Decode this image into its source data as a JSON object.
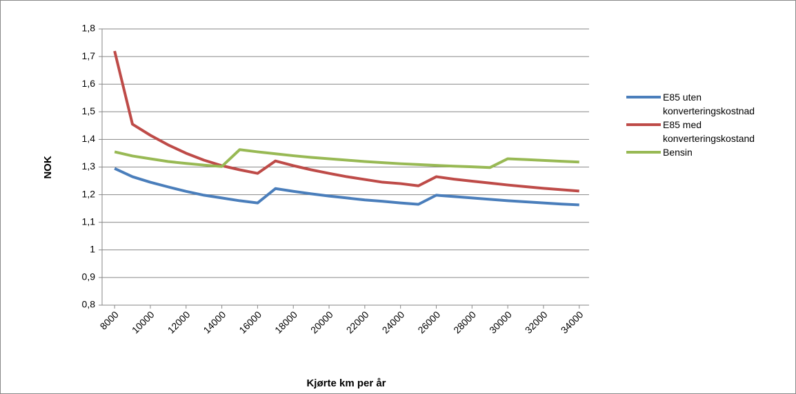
{
  "chart_data": {
    "type": "line",
    "xlabel": "Kjørte km per år",
    "ylabel": "NOK",
    "x": [
      8000,
      9000,
      10000,
      11000,
      12000,
      13000,
      14000,
      15000,
      16000,
      17000,
      18000,
      19000,
      20000,
      21000,
      22000,
      23000,
      24000,
      25000,
      26000,
      27000,
      28000,
      29000,
      30000,
      31000,
      32000,
      33000,
      34000
    ],
    "series": [
      {
        "name": "E85 uten konverteringskostnad",
        "color": "#4a7ebb",
        "values": [
          1.295,
          1.265,
          1.245,
          1.228,
          1.212,
          1.198,
          1.188,
          1.178,
          1.17,
          1.222,
          1.212,
          1.203,
          1.195,
          1.188,
          1.181,
          1.176,
          1.17,
          1.165,
          1.198,
          1.193,
          1.188,
          1.183,
          1.178,
          1.174,
          1.17,
          1.166,
          1.163
        ]
      },
      {
        "name": "E85 med konverteringskostand",
        "color": "#be4b48",
        "values": [
          1.72,
          1.455,
          1.415,
          1.38,
          1.35,
          1.325,
          1.305,
          1.29,
          1.277,
          1.322,
          1.305,
          1.29,
          1.277,
          1.265,
          1.255,
          1.245,
          1.24,
          1.232,
          1.265,
          1.256,
          1.249,
          1.242,
          1.235,
          1.229,
          1.223,
          1.218,
          1.213
        ]
      },
      {
        "name": "Bensin",
        "color": "#98b954",
        "values": [
          1.355,
          1.34,
          1.33,
          1.32,
          1.313,
          1.307,
          1.302,
          1.363,
          1.355,
          1.348,
          1.341,
          1.335,
          1.33,
          1.325,
          1.32,
          1.316,
          1.312,
          1.309,
          1.306,
          1.303,
          1.301,
          1.298,
          1.33,
          1.327,
          1.324,
          1.321,
          1.318
        ]
      }
    ],
    "xlim": [
      7300,
      34550
    ],
    "xticks": [
      8000,
      10000,
      12000,
      14000,
      16000,
      18000,
      20000,
      22000,
      24000,
      26000,
      28000,
      30000,
      32000,
      34000
    ],
    "ylim": [
      0.8,
      1.8
    ],
    "yticks": [
      {
        "value": 0.8,
        "label": "0,8"
      },
      {
        "value": 0.9,
        "label": "0,9"
      },
      1,
      {
        "value": 1.1,
        "label": "1,1"
      },
      {
        "value": 1.2,
        "label": "1,2"
      },
      {
        "value": 1.3,
        "label": "1,3"
      },
      {
        "value": 1.4,
        "label": "1,4"
      },
      {
        "value": 1.5,
        "label": "1,5"
      },
      {
        "value": 1.6,
        "label": "1,6"
      },
      {
        "value": 1.7,
        "label": "1,7"
      },
      {
        "value": 1.8,
        "label": "1,8"
      }
    ],
    "grid": true,
    "legend": "right"
  }
}
